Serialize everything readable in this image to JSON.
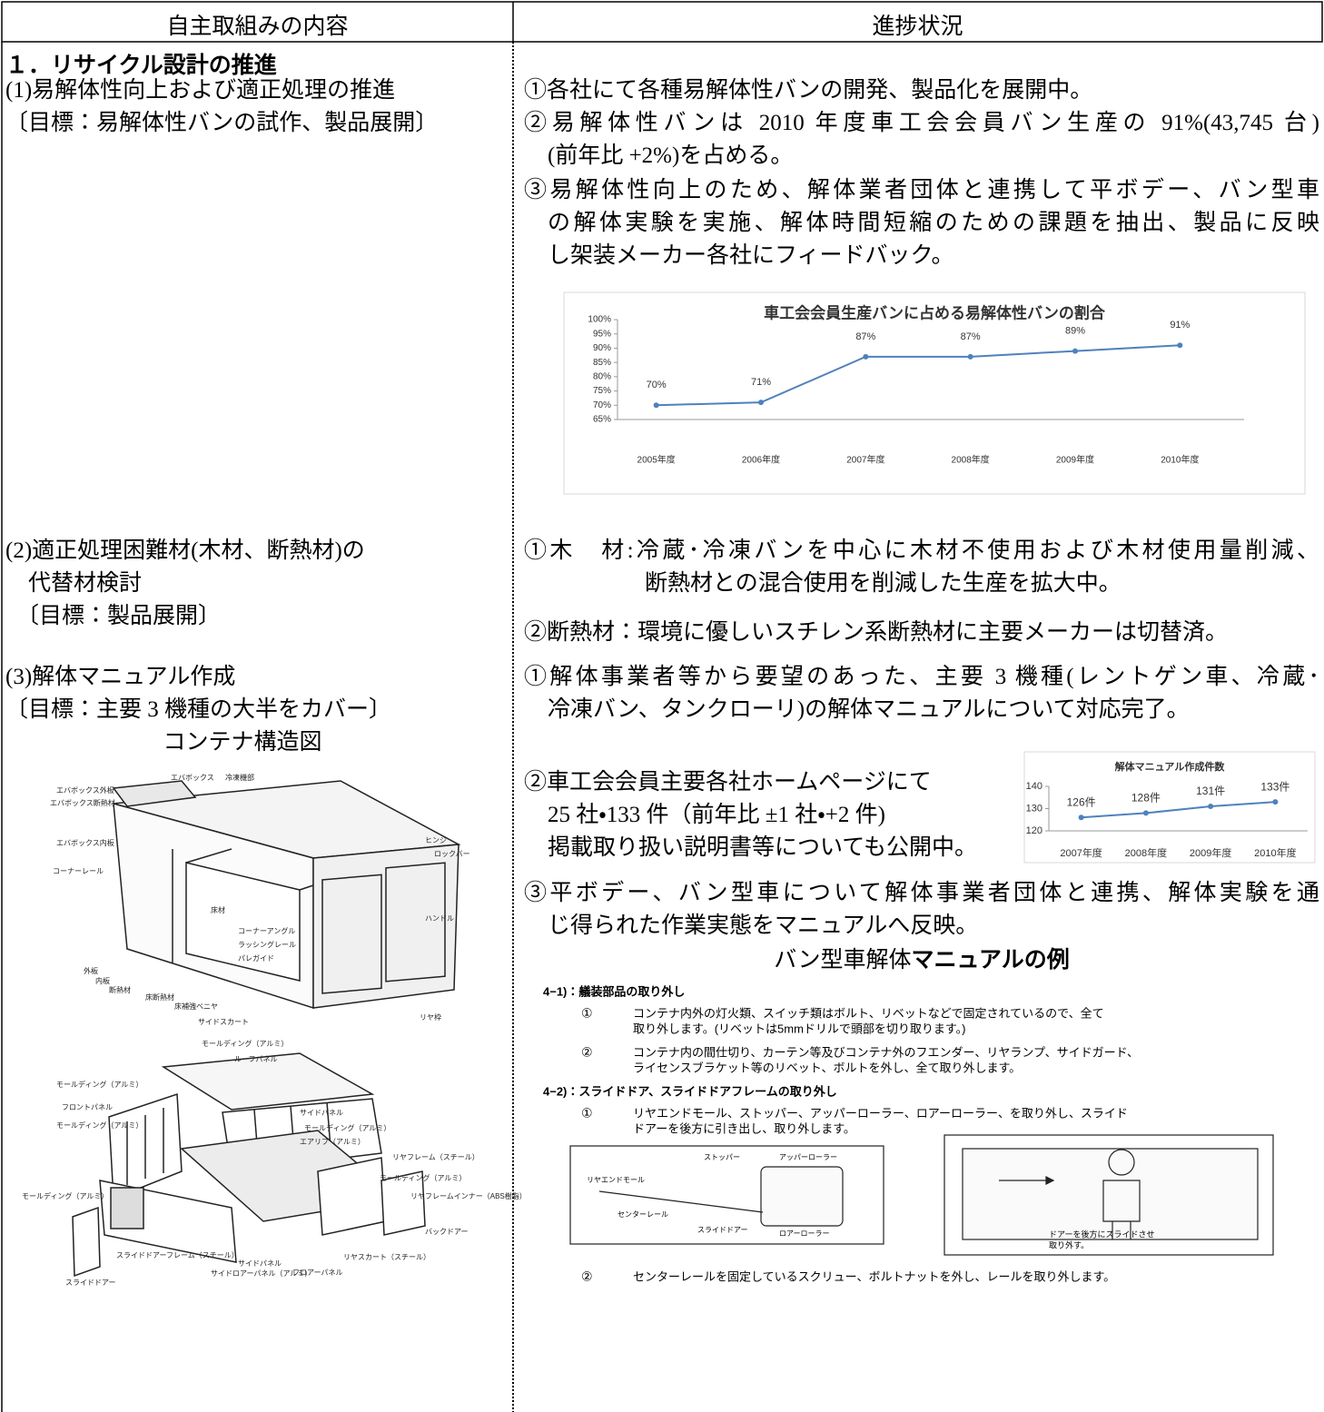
{
  "header": {
    "columns": [
      "自主取組みの内容",
      "進捗状況"
    ]
  },
  "section": {
    "title": "１．リサイクル設計の推進"
  },
  "items": [
    {
      "left": [
        "(1)易解体性向上および適正処理の推進",
        "〔目標：易解体性バンの試作、製品展開〕"
      ],
      "right": [
        [
          "①各社にて各種易解体性バンの開発、製品化を展開中。"
        ],
        [
          "②易解体性バンは 2010 年度車工会会員バン生産の 91%(43,745 台)",
          "(前年比 +2%)を占める。"
        ],
        [
          "③易解体性向上のため、解体業者団体と連携して平ボデー、バン型車",
          "の解体実験を実施、解体時間短縮のための課題を抽出、製品に反映",
          "し架装メーカー各社にフィードバック。"
        ]
      ]
    },
    {
      "left": [
        "(2)適正処理困難材(木材、断熱材)の",
        "代替材検討",
        "〔目標：製品展開〕"
      ],
      "right": [
        [
          "①木　材:冷蔵･冷凍バンを中心に木材不使用および木材使用量削減、",
          "断熱材との混合使用を削減した生産を拡大中。"
        ],
        [
          "②断熱材：環境に優しいスチレン系断熱材に主要メーカーは切替済。"
        ]
      ]
    },
    {
      "left": [
        "(3)解体マニュアル作成",
        "〔目標：主要 3 機種の大半をカバー〕"
      ],
      "figure_caption": "コンテナ構造図",
      "right": [
        [
          "①解体事業者等から要望のあった、主要 3 機種(レントゲン車、冷蔵･",
          "冷凍バン、タンクローリ)の解体マニュアルについて対応完了。"
        ],
        [
          "②車工会会員主要各社ホームページにて",
          "25 社・133 件（前年比 ±1 社・+2 件)",
          "掲載取り扱い説明書等についても公開中。"
        ],
        [
          "③平ボデー、バン型車について解体事業者団体と連携、解体実験を通",
          "じ得られた作業実態をマニュアルへ反映。"
        ]
      ]
    }
  ],
  "chart_data": [
    {
      "type": "line",
      "title": "車工会会員生産バンに占める易解体性バンの割合",
      "categories": [
        "2005年度",
        "2006年度",
        "2007年度",
        "2008年度",
        "2009年度",
        "2010年度"
      ],
      "values": [
        70,
        71,
        87,
        87,
        89,
        91
      ],
      "value_labels": [
        "70%",
        "71%",
        "87%",
        "87%",
        "89%",
        "91%"
      ],
      "color": "#4f81bd",
      "grid": false,
      "ylim": [
        65,
        100
      ],
      "yticks": [
        {
          "value": 65,
          "label": "65%"
        },
        {
          "value": 70,
          "label": "70%"
        },
        {
          "value": 75,
          "label": "75%"
        },
        {
          "value": 80,
          "label": "80%"
        },
        {
          "value": 85,
          "label": "85%"
        },
        {
          "value": 90,
          "label": "90%"
        },
        {
          "value": 95,
          "label": "95%"
        },
        {
          "value": 100,
          "label": "100%"
        }
      ]
    },
    {
      "type": "line",
      "title": "解体マニュアル作成件数",
      "categories": [
        "2007年度",
        "2008年度",
        "2009年度",
        "2010年度"
      ],
      "values": [
        126,
        128,
        131,
        133
      ],
      "value_labels": [
        "126件",
        "128件",
        "131件",
        "133件"
      ],
      "color": "#4f81bd",
      "grid": false,
      "ylim": [
        120,
        140
      ],
      "yticks": [
        120,
        130,
        140
      ]
    }
  ],
  "diagrams": [
    {
      "labels": [
        "エバボックス",
        "冷凍機部",
        "エバボックス外板",
        "エバボックス断熱材",
        "エバボックス内板",
        "コーナーレール",
        "ヒンジ",
        "ロックバー",
        "ハンドル",
        "床材",
        "コーナーアングル",
        "ラッシングレール",
        "パレガイド",
        "外板",
        "内板",
        "断熱材",
        "床断熱材",
        "床補強ベニヤ",
        "サイドスカート",
        "リヤ枠"
      ]
    },
    {
      "labels": [
        "モールディング（アルミ）",
        "ルーフパネル",
        "モールディング（アルミ）",
        "フロントパネル",
        "モールディング（アルミ）",
        "サイドパネル",
        "モールディング（アルミ）",
        "エアリブ（アルミ）",
        "リヤフレーム（スチール）",
        "モールディング（アルミ）",
        "リヤフレームインナー（ABS樹脂）",
        "バックドアー",
        "リヤスカート（スチール）",
        "フロアーパネル",
        "サイドパネル",
        "サイドロアーパネル（アルミ）",
        "スライドドアーフレーム（スチール）",
        "スライドドアー",
        "モールディング（アルミ）"
      ]
    }
  ],
  "manual": {
    "caption_plain": "バン型車解体",
    "caption_bold": "マニュアルの例",
    "sections": [
      {
        "heading": "4−1)：艤装部品の取り外し",
        "steps": [
          {
            "num": "①",
            "lines": [
              "コンテナ内外の灯火類、スイッチ類はボルト、リベットなどで固定されているので、全て",
              "取り外します。(リベットは5mmドリルで頭部を切り取ります。)"
            ]
          },
          {
            "num": "②",
            "lines": [
              "コンテナ内の間仕切り、カーテン等及びコンテナ外のフエンダー、リヤランプ、サイドガード、",
              "ライセンスブラケット等のリベット、ボルトを外し、全て取り外します。"
            ]
          }
        ]
      },
      {
        "heading": "4−2)：スライドドア、スライドドアフレームの取り外し",
        "steps": [
          {
            "num": "①",
            "lines": [
              "リヤエンドモール、ストッパー、アッパーローラー、ロアーローラー、を取り外し、スライド",
              "ドアーを後方に引き出し、取り外します。"
            ]
          }
        ]
      }
    ],
    "figure_labels": [
      "ストッパー",
      "アッパーローラー",
      "リヤエンドモール",
      "センターレール",
      "スライドドアー",
      "ロアーローラー"
    ],
    "figure2_label": [
      "ドアーを後方にスライドさせ",
      "取り外す。"
    ],
    "final_step": {
      "num": "②",
      "lines": [
        "センターレールを固定しているスクリュー、ボルトナットを外し、レールを取り外します。"
      ]
    }
  }
}
